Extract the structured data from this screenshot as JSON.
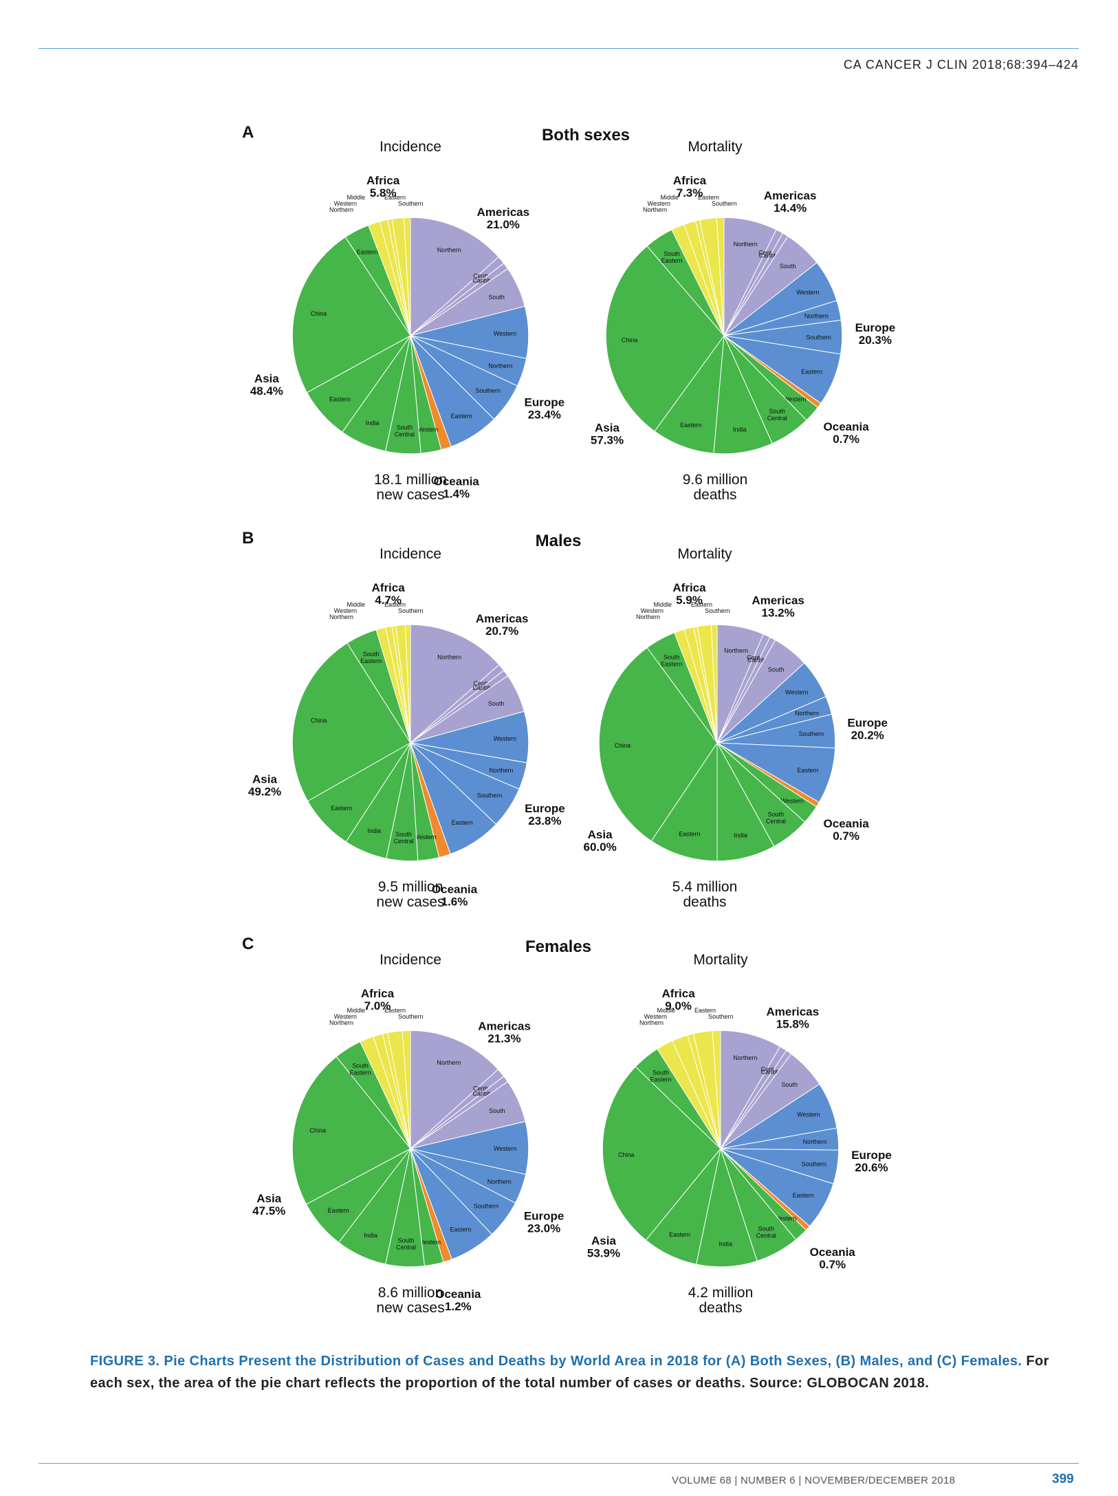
{
  "header": {
    "journal_ref": "CA CANCER J CLIN 2018;68:394–424"
  },
  "caption": {
    "title": "FIGURE 3. Pie Charts Present the Distribution of Cases and Deaths by World Area in 2018 for (A) Both Sexes, (B) Males, and (C) Females.",
    "body": "For each sex, the area of the pie chart reflects the proportion of the total number of cases or deaths. Source: GLOBOCAN 2018."
  },
  "footer": {
    "issue": "VOLUME 68 | NUMBER 6 | NOVEMBER/DECEMBER 2018",
    "page_number": "399"
  },
  "colors": {
    "Africa": "#ebe64b",
    "Americas": "#a7a2cf",
    "Europe": "#5b8fd1",
    "Oceania": "#f08a2c",
    "Asia": "#46b54a"
  },
  "panels": [
    {
      "letter": "A",
      "title": "Both sexes"
    },
    {
      "letter": "B",
      "title": "Males"
    },
    {
      "letter": "C",
      "title": "Females"
    }
  ],
  "chart_data": [
    {
      "type": "pie",
      "panel": "A",
      "title": "Incidence",
      "total": "18.1 million new cases",
      "total_lines": [
        "18.1 million",
        "new cases"
      ],
      "regions": [
        {
          "name": "Americas",
          "pct": "21.0%",
          "subs": [
            [
              "Northern",
              13.4
            ],
            [
              "Central",
              1.1
            ],
            [
              "Caribbean",
              0.9
            ],
            [
              "South",
              5.6
            ]
          ]
        },
        {
          "name": "Europe",
          "pct": "23.4%",
          "subs": [
            [
              "Western",
              7.1
            ],
            [
              "Northern",
              3.9
            ],
            [
              "Southern",
              5.5
            ],
            [
              "Eastern",
              6.9
            ]
          ]
        },
        {
          "name": "Oceania",
          "pct": "1.4%",
          "subs": [
            [
              "",
              1.4
            ]
          ]
        },
        {
          "name": "Asia",
          "pct": "48.4%",
          "subs": [
            [
              "Western",
              2.8
            ],
            [
              "South Central",
              4.8
            ],
            [
              "India",
              6.4
            ],
            [
              "Eastern",
              7.2
            ],
            [
              "China",
              23.7
            ],
            [
              "Eastern",
              3.5
            ]
          ]
        },
        {
          "name": "Africa",
          "pct": "5.8%",
          "subs": [
            [
              "Northern",
              1.6
            ],
            [
              "Western",
              1.1
            ],
            [
              "Middle",
              0.6
            ],
            [
              "Eastern",
              1.6
            ],
            [
              "Southern",
              0.9
            ]
          ]
        }
      ]
    },
    {
      "type": "pie",
      "panel": "A",
      "title": "Mortality",
      "total": "9.6 million deaths",
      "total_lines": [
        "9.6 million",
        "deaths"
      ],
      "regions": [
        {
          "name": "Americas",
          "pct": "14.4%",
          "subs": [
            [
              "Northern",
              7.3
            ],
            [
              "Central",
              1.0
            ],
            [
              "Caribbean",
              0.8
            ],
            [
              "South",
              5.3
            ]
          ]
        },
        {
          "name": "Europe",
          "pct": "20.3%",
          "subs": [
            [
              "Western",
              5.8
            ],
            [
              "Northern",
              2.7
            ],
            [
              "Southern",
              4.6
            ],
            [
              "Eastern",
              7.2
            ]
          ]
        },
        {
          "name": "Oceania",
          "pct": "0.7%",
          "subs": [
            [
              "",
              0.7
            ]
          ]
        },
        {
          "name": "Asia",
          "pct": "57.3%",
          "subs": [
            [
              "Western",
              2.3
            ],
            [
              "South Central",
              5.6
            ],
            [
              "India",
              8.1
            ],
            [
              "Eastern",
              8.6
            ],
            [
              "China",
              28.7
            ],
            [
              "South Eastern",
              4.0
            ]
          ]
        },
        {
          "name": "Africa",
          "pct": "7.3%",
          "subs": [
            [
              "Northern",
              1.8
            ],
            [
              "Western",
              1.6
            ],
            [
              "Middle",
              0.6
            ],
            [
              "Eastern",
              2.3
            ],
            [
              "Southern",
              1.0
            ]
          ]
        }
      ]
    },
    {
      "type": "pie",
      "panel": "B",
      "title": "Incidence",
      "total": "9.5 million new cases",
      "total_lines": [
        "9.5 million",
        "new cases"
      ],
      "regions": [
        {
          "name": "Americas",
          "pct": "20.7%",
          "subs": [
            [
              "Northern",
              13.5
            ],
            [
              "Central",
              1.0
            ],
            [
              "Caribbean",
              0.9
            ],
            [
              "South",
              5.3
            ]
          ]
        },
        {
          "name": "Europe",
          "pct": "23.8%",
          "subs": [
            [
              "Western",
              7.0
            ],
            [
              "Northern",
              3.7
            ],
            [
              "Southern",
              5.7
            ],
            [
              "Eastern",
              7.4
            ]
          ]
        },
        {
          "name": "Oceania",
          "pct": "1.6%",
          "subs": [
            [
              "",
              1.6
            ]
          ]
        },
        {
          "name": "Asia",
          "pct": "49.2%",
          "subs": [
            [
              "Western",
              2.9
            ],
            [
              "South Central",
              4.3
            ],
            [
              "India",
              5.9
            ],
            [
              "Eastern",
              7.6
            ],
            [
              "China",
              24.2
            ],
            [
              "South Eastern",
              4.3
            ]
          ]
        },
        {
          "name": "Africa",
          "pct": "4.7%",
          "subs": [
            [
              "Northern",
              1.3
            ],
            [
              "Western",
              0.9
            ],
            [
              "Middle",
              0.5
            ],
            [
              "Eastern",
              1.3
            ],
            [
              "Southern",
              0.7
            ]
          ]
        }
      ]
    },
    {
      "type": "pie",
      "panel": "B",
      "title": "Mortality",
      "total": "5.4 million deaths",
      "total_lines": [
        "5.4 million",
        "deaths"
      ],
      "regions": [
        {
          "name": "Americas",
          "pct": "13.2%",
          "subs": [
            [
              "Northern",
              6.4
            ],
            [
              "Central",
              1.0
            ],
            [
              "Caribbean",
              0.8
            ],
            [
              "South",
              5.0
            ]
          ]
        },
        {
          "name": "Europe",
          "pct": "20.2%",
          "subs": [
            [
              "Western",
              5.4
            ],
            [
              "Northern",
              2.5
            ],
            [
              "Southern",
              4.6
            ],
            [
              "Eastern",
              7.7
            ]
          ]
        },
        {
          "name": "Oceania",
          "pct": "0.7%",
          "subs": [
            [
              "",
              0.7
            ]
          ]
        },
        {
          "name": "Asia",
          "pct": "60.0%",
          "subs": [
            [
              "Western",
              2.6
            ],
            [
              "South Central",
              5.3
            ],
            [
              "India",
              8.0
            ],
            [
              "Eastern",
              9.4
            ],
            [
              "China",
              30.5
            ],
            [
              "South Eastern",
              4.2
            ]
          ]
        },
        {
          "name": "Africa",
          "pct": "5.9%",
          "subs": [
            [
              "Northern",
              1.4
            ],
            [
              "Western",
              1.3
            ],
            [
              "Middle",
              0.5
            ],
            [
              "Eastern",
              1.9
            ],
            [
              "Southern",
              0.8
            ]
          ]
        }
      ]
    },
    {
      "type": "pie",
      "panel": "C",
      "title": "Incidence",
      "total": "8.6 million new cases",
      "total_lines": [
        "8.6 million",
        "new cases"
      ],
      "regions": [
        {
          "name": "Americas",
          "pct": "21.3%",
          "subs": [
            [
              "Northern",
              13.3
            ],
            [
              "Central",
              1.2
            ],
            [
              "Caribbean",
              0.9
            ],
            [
              "South",
              5.9
            ]
          ]
        },
        {
          "name": "Europe",
          "pct": "23.0%",
          "subs": [
            [
              "Western",
              7.2
            ],
            [
              "Northern",
              4.1
            ],
            [
              "Southern",
              5.3
            ],
            [
              "Eastern",
              6.4
            ]
          ]
        },
        {
          "name": "Oceania",
          "pct": "1.2%",
          "subs": [
            [
              "",
              1.2
            ]
          ]
        },
        {
          "name": "Asia",
          "pct": "47.5%",
          "subs": [
            [
              "Western",
              2.6
            ],
            [
              "South Central",
              5.3
            ],
            [
              "India",
              7.0
            ],
            [
              "Eastern",
              6.8
            ],
            [
              "China",
              22.0
            ],
            [
              "South Eastern",
              3.8
            ]
          ]
        },
        {
          "name": "Africa",
          "pct": "7.0%",
          "subs": [
            [
              "Northern",
              1.9
            ],
            [
              "Western",
              1.3
            ],
            [
              "Middle",
              0.7
            ],
            [
              "Eastern",
              2.0
            ],
            [
              "Southern",
              1.1
            ]
          ]
        }
      ]
    },
    {
      "type": "pie",
      "panel": "C",
      "title": "Mortality",
      "total": "4.2 million deaths",
      "total_lines": [
        "4.2 million",
        "deaths"
      ],
      "regions": [
        {
          "name": "Americas",
          "pct": "15.8%",
          "subs": [
            [
              "Northern",
              8.4
            ],
            [
              "Central",
              1.0
            ],
            [
              "Caribbean",
              0.8
            ],
            [
              "South",
              5.6
            ]
          ]
        },
        {
          "name": "Europe",
          "pct": "20.6%",
          "subs": [
            [
              "Western",
              6.4
            ],
            [
              "Northern",
              3.0
            ],
            [
              "Southern",
              4.6
            ],
            [
              "Eastern",
              6.6
            ]
          ]
        },
        {
          "name": "Oceania",
          "pct": "0.7%",
          "subs": [
            [
              "",
              0.7
            ]
          ]
        },
        {
          "name": "Asia",
          "pct": "53.9%",
          "subs": [
            [
              "Western",
              1.9
            ],
            [
              "South Central",
              6.0
            ],
            [
              "India",
              8.3
            ],
            [
              "Eastern",
              7.6
            ],
            [
              "China",
              26.3
            ],
            [
              "South Eastern",
              3.8
            ]
          ]
        },
        {
          "name": "Africa",
          "pct": "9.0%",
          "subs": [
            [
              "Northern",
              2.3
            ],
            [
              "Western",
              2.2
            ],
            [
              "Middle",
              0.8
            ],
            [
              "Eastern",
              2.6
            ],
            [
              "Southern",
              1.1
            ]
          ]
        }
      ]
    }
  ]
}
